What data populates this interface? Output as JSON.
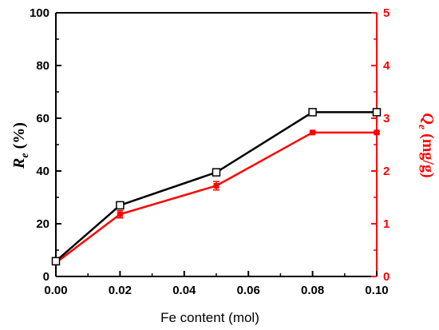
{
  "chart_data": {
    "type": "line",
    "xlabel": "Fe content (mol)",
    "ylabel_left": {
      "main": "R",
      "sub": "e",
      "unit": " (%)"
    },
    "ylabel_right": {
      "main": "Q",
      "sub": "e",
      "unit": " (mg/g)"
    },
    "xlim": [
      0.0,
      0.1
    ],
    "ylim_left": [
      0,
      100
    ],
    "ylim_right": [
      0,
      5
    ],
    "x_ticks": [
      "0.00",
      "0.02",
      "0.04",
      "0.06",
      "0.08",
      "0.10"
    ],
    "y_left_ticks": [
      "0",
      "20",
      "40",
      "60",
      "80",
      "100"
    ],
    "y_right_ticks": [
      "0",
      "1",
      "2",
      "3",
      "4",
      "5"
    ],
    "grid": false,
    "colors": {
      "left_axis": "#000000",
      "right_axis": "#ff0000",
      "series_re": "#000000",
      "series_qe": "#ff0000"
    },
    "series": [
      {
        "axis": "left",
        "marker": "open-square",
        "x": [
          0.0,
          0.02,
          0.05,
          0.08,
          0.1
        ],
        "values": [
          5.8,
          27.0,
          39.5,
          62.3,
          62.3
        ]
      },
      {
        "axis": "right",
        "marker": "filled-square",
        "x": [
          0.0,
          0.02,
          0.05,
          0.08,
          0.1
        ],
        "values": [
          0.26,
          1.18,
          1.72,
          2.73,
          2.73
        ],
        "errors": [
          0.03,
          0.07,
          0.08,
          0.02,
          0.02
        ]
      }
    ]
  }
}
